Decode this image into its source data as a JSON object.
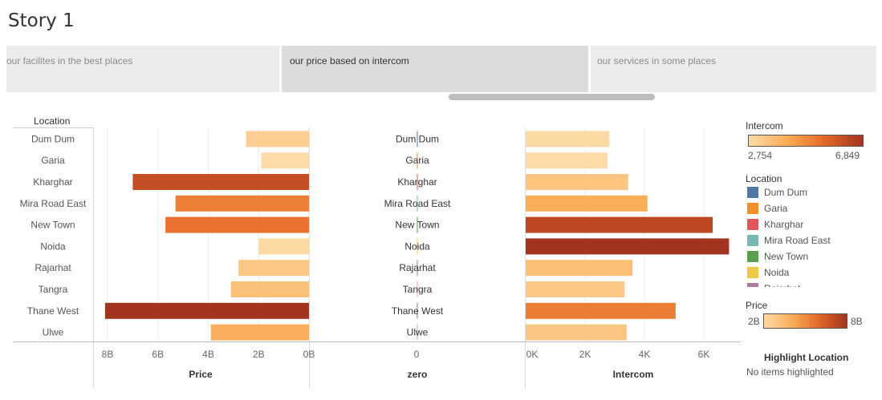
{
  "story": {
    "title": "Story 1",
    "points": [
      "our facilites in the best places",
      "our price based on intercom",
      "our services in some places"
    ],
    "active_index": 1
  },
  "chart_data": [
    {
      "type": "bar",
      "orientation": "horizontal",
      "title": "",
      "xlabel": "Price",
      "ylabel": "Location",
      "categories": [
        "Dum Dum",
        "Garia",
        "Kharghar",
        "Mira Road East",
        "New Town",
        "Noida",
        "Rajarhat",
        "Tangra",
        "Thane West",
        "Ulwe"
      ],
      "values": [
        2500000000,
        1900000000,
        7000000000,
        5300000000,
        5700000000,
        2000000000,
        2800000000,
        3100000000,
        8100000000,
        3900000000
      ],
      "xlim": [
        8300000000,
        0
      ],
      "xticks": [
        "8B",
        "6B",
        "4B",
        "2B",
        "0B"
      ],
      "xtick_values": [
        8000000000,
        6000000000,
        4000000000,
        2000000000,
        0
      ],
      "color_by": "Price",
      "grid": true
    },
    {
      "type": "bar",
      "orientation": "horizontal",
      "title": "",
      "xlabel": "zero",
      "categories": [
        "Dum Dum",
        "Garia",
        "Kharghar",
        "Mira Road East",
        "New Town",
        "Noida",
        "Rajarhat",
        "Tangra",
        "Thane West",
        "Ulwe"
      ],
      "values": [
        0,
        0,
        0,
        0,
        0,
        0,
        0,
        0,
        0,
        0
      ],
      "xticks": [
        "0"
      ],
      "color_by": "Location"
    },
    {
      "type": "bar",
      "orientation": "horizontal",
      "title": "",
      "xlabel": "Intercom",
      "categories": [
        "Dum Dum",
        "Garia",
        "Kharghar",
        "Mira Road East",
        "New Town",
        "Noida",
        "Rajarhat",
        "Tangra",
        "Thane West",
        "Ulwe"
      ],
      "values": [
        2820,
        2754,
        3450,
        4100,
        6300,
        6849,
        3600,
        3330,
        5050,
        3400
      ],
      "xlim": [
        0,
        6900
      ],
      "xticks": [
        "0K",
        "2K",
        "4K",
        "6K"
      ],
      "xtick_values": [
        0,
        2000,
        4000,
        6000
      ],
      "color_by": "Intercom",
      "grid": true
    }
  ],
  "legends": {
    "intercom": {
      "title": "Intercom",
      "min_label": "2,754",
      "max_label": "6,849",
      "min_value": 2754,
      "max_value": 6849
    },
    "location": {
      "title": "Location",
      "items": [
        {
          "label": "Dum Dum",
          "color": "#4e79a7"
        },
        {
          "label": "Garia",
          "color": "#f28e2b"
        },
        {
          "label": "Kharghar",
          "color": "#e15759"
        },
        {
          "label": "Mira Road East",
          "color": "#76b7b2"
        },
        {
          "label": "New Town",
          "color": "#59a14f"
        },
        {
          "label": "Noida",
          "color": "#edc948"
        },
        {
          "label": "Rajarhat",
          "color": "#b07aa1"
        }
      ]
    },
    "price": {
      "title": "Price",
      "min_label": "2B",
      "max_label": "8B"
    }
  },
  "highlight": {
    "title": "Highlight Location",
    "value": "No items highlighted"
  },
  "colors": {
    "ramp_low": "#fdcf8f",
    "ramp_mid": "#f28e2b",
    "ramp_high": "#a3341f"
  }
}
